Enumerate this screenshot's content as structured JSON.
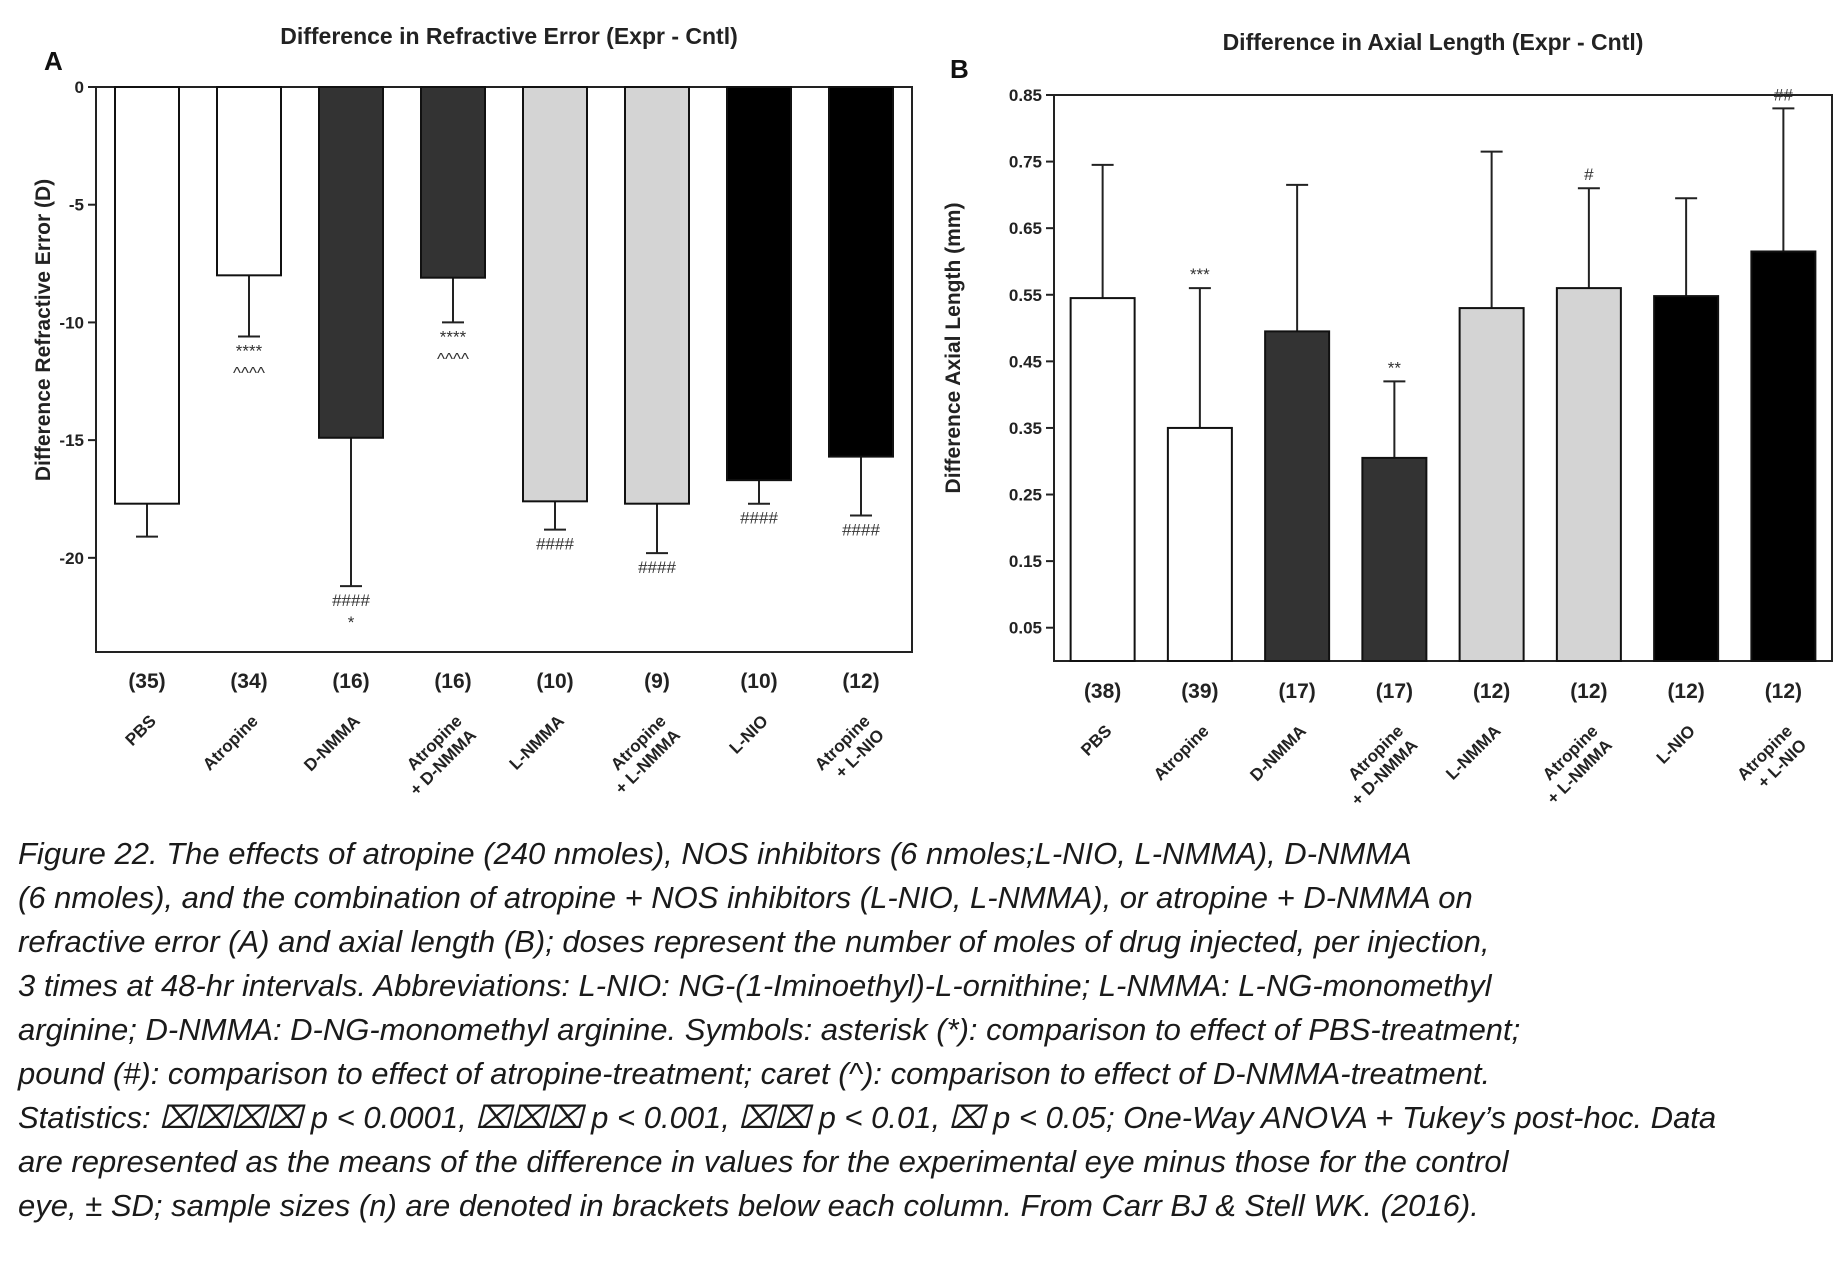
{
  "chart_data": [
    {
      "type": "bar",
      "panel_letter": "A",
      "title": "Difference in Refractive Error (Expr -  Cntl)",
      "ylabel": "Difference Refractive  Error  (D)",
      "xlabel": "",
      "ylim": [
        -24,
        0
      ],
      "yticks": [
        "0",
        "-5",
        "-10",
        "-15",
        "-20"
      ],
      "grid": false,
      "categories": [
        "PBS",
        "Atropine",
        "D-NMMA",
        "Atropine\n+ D-NMMA",
        "L-NMMA",
        "Atropine\n+ L-NMMA",
        "L-NIO",
        "Atropine\n+ L-NIO"
      ],
      "sample_sizes": [
        "(35)",
        "(34)",
        "(16)",
        "(16)",
        "(10)",
        "(9)",
        "(10)",
        "(12)"
      ],
      "values": [
        -17.7,
        -8.0,
        -14.9,
        -8.1,
        -17.6,
        -17.7,
        -16.7,
        -15.7
      ],
      "error_sd": [
        1.4,
        2.6,
        6.3,
        1.9,
        1.2,
        2.1,
        1.0,
        2.5
      ],
      "fill_colors": [
        "#ffffff",
        "#ffffff",
        "#333333",
        "#333333",
        "#d4d4d4",
        "#d4d4d4",
        "#000000",
        "#000000"
      ],
      "significance": [
        [],
        [
          "****",
          "^^^^"
        ],
        [
          "####",
          "*"
        ],
        [
          "****",
          "^^^^"
        ],
        [
          "####"
        ],
        [
          "####"
        ],
        [
          "####"
        ],
        [
          "####"
        ]
      ],
      "significance_position": "below"
    },
    {
      "type": "bar",
      "panel_letter": "B",
      "title": "Difference in Axial Length (Expr -  Cntl)",
      "ylabel": "Difference Axial  Length (mm)",
      "xlabel": "",
      "ylim": [
        0.0,
        0.85
      ],
      "yticks": [
        "0.85",
        "0.75",
        "0.65",
        "0.55",
        "0.45",
        "0.35",
        "0.25",
        "0.15",
        "0.05"
      ],
      "grid": false,
      "categories": [
        "PBS",
        "Atropine",
        "D-NMMA",
        "Atropine\n+ D-NMMA",
        "L-NMMA",
        "Atropine\n+ L-NMMA",
        "L-NIO",
        "Atropine\n+ L-NIO"
      ],
      "sample_sizes": [
        "(38)",
        "(39)",
        "(17)",
        "(17)",
        "(12)",
        "(12)",
        "(12)",
        "(12)"
      ],
      "values": [
        0.545,
        0.35,
        0.495,
        0.305,
        0.53,
        0.56,
        0.548,
        0.615
      ],
      "error_sd": [
        0.2,
        0.21,
        0.22,
        0.115,
        0.235,
        0.15,
        0.147,
        0.215
      ],
      "fill_colors": [
        "#ffffff",
        "#ffffff",
        "#333333",
        "#333333",
        "#d4d4d4",
        "#d4d4d4",
        "#000000",
        "#000000"
      ],
      "significance": [
        [],
        [
          "***"
        ],
        [],
        [
          "**"
        ],
        [],
        [
          "#"
        ],
        [],
        [
          "##"
        ]
      ],
      "significance_position": "above"
    }
  ],
  "caption": {
    "lines": [
      "Figure 22. The effects of atropine (240 nmoles), NOS inhibitors (6 nmoles;L-NIO, L-NMMA), D-NMMA",
      "(6 nmoles), and the combination of atropine + NOS inhibitors (L-NIO, L-NMMA), or atropine + D-NMMA on",
      "refractive error (A) and axial length (B); doses represent the number of moles of drug injected, per injection,",
      "3 times at 48-hr intervals. Abbreviations: L-NIO: NG-(1-Iminoethyl)-L-ornithine; L-NMMA: L-NG-monomethyl",
      " arginine; D-NMMA: D-NG-monomethyl arginine. Symbols: asterisk (*): comparison to effect of PBS-treatment;",
      " pound (#): comparison to effect of atropine-treatment; caret (^): comparison to effect of D-NMMA-treatment.",
      "Statistics: ⌧⌧⌧⌧ p < 0.0001, ⌧⌧⌧ p < 0.001, ⌧⌧ p < 0.01, ⌧ p < 0.05; One-Way ANOVA + Tukey’s post-hoc. Data",
      "are represented as the means of the difference in values for the experimental eye minus those for the control",
      "eye, ± SD; sample sizes (n) are denoted in brackets below each column.  From Carr BJ & Stell WK. (2016)."
    ]
  }
}
